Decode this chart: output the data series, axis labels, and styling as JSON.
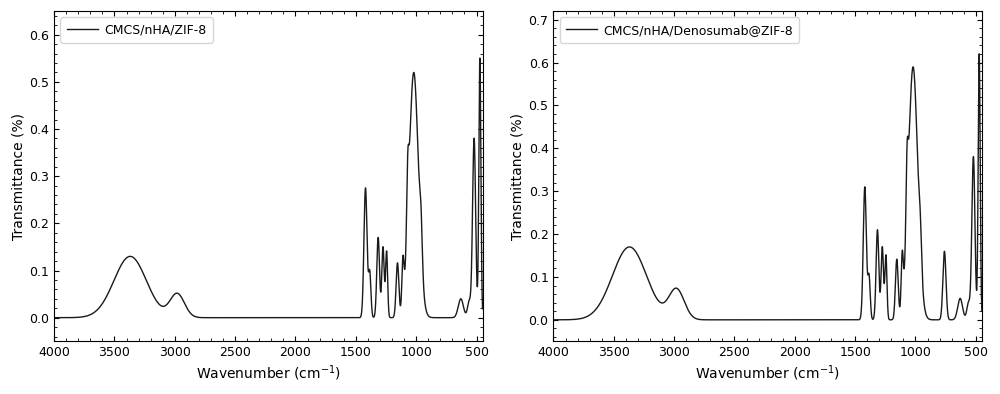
{
  "plot1": {
    "legend_label": "CMCS/nHA/ZIF-8",
    "xlabel": "Wavenumber (cm⁻¹)",
    "ylabel": "Transmittance (%)",
    "xlim": [
      4000,
      450
    ],
    "ylim": [
      -0.05,
      0.65
    ],
    "yticks": [
      0.0,
      0.1,
      0.2,
      0.3,
      0.4,
      0.5,
      0.6
    ],
    "xticks": [
      4000,
      3500,
      3000,
      2500,
      2000,
      1500,
      1000,
      500
    ]
  },
  "plot2": {
    "legend_label": "CMCS/nHA/Denosumab@ZIF-8",
    "xlabel": "Wavenumber (cm⁻¹)",
    "ylabel": "Transmittance (%)",
    "xlim": [
      4000,
      450
    ],
    "ylim": [
      -0.05,
      0.72
    ],
    "yticks": [
      0.0,
      0.1,
      0.2,
      0.3,
      0.4,
      0.5,
      0.6,
      0.7
    ],
    "xticks": [
      4000,
      3500,
      3000,
      2500,
      2000,
      1500,
      1000,
      500
    ]
  },
  "line_color": "#1a1a1a",
  "line_width": 1.0,
  "font_size": 10,
  "legend_font_size": 9,
  "tick_font_size": 9
}
